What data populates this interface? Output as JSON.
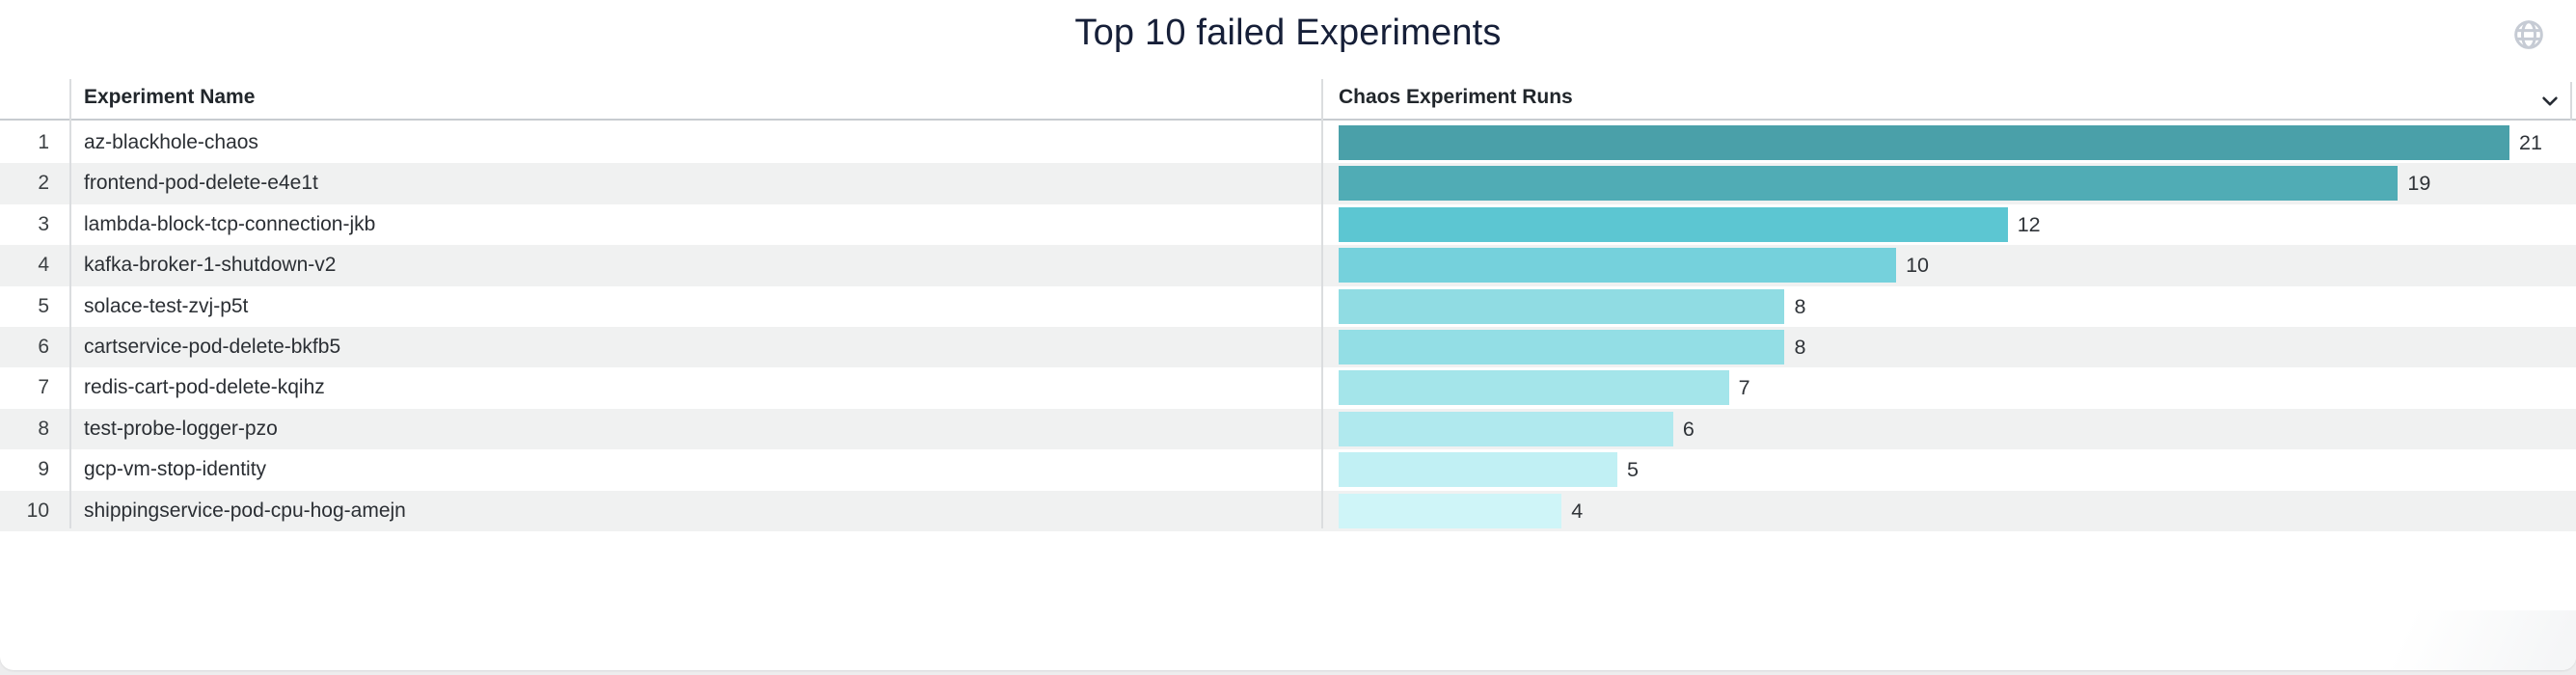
{
  "card": {
    "title": "Top 10 failed Experiments"
  },
  "icons": {
    "top_right": "globe-icon",
    "header_sort": "chevron-down-icon"
  },
  "table": {
    "columns": [
      {
        "label": ""
      },
      {
        "label": "Experiment Name"
      },
      {
        "label": "Chaos Experiment Runs"
      }
    ],
    "rows": [
      {
        "rank": 1,
        "name": "az-blackhole-chaos",
        "runs": 21,
        "color": "#4aa0a9"
      },
      {
        "rank": 2,
        "name": "frontend-pod-delete-e4e1t",
        "runs": 19,
        "color": "#50acb5"
      },
      {
        "rank": 3,
        "name": "lambda-block-tcp-connection-jkb",
        "runs": 12,
        "color": "#5cc6d2"
      },
      {
        "rank": 4,
        "name": "kafka-broker-1-shutdown-v2",
        "runs": 10,
        "color": "#75d1dc"
      },
      {
        "rank": 5,
        "name": "solace-test-zvj-p5t",
        "runs": 8,
        "color": "#90dce3"
      },
      {
        "rank": 6,
        "name": "cartservice-pod-delete-bkfb5",
        "runs": 8,
        "color": "#93dee5"
      },
      {
        "rank": 7,
        "name": "redis-cart-pod-delete-kqihz",
        "runs": 7,
        "color": "#a4e5ea"
      },
      {
        "rank": 8,
        "name": "test-probe-logger-pzo",
        "runs": 6,
        "color": "#b0e9ee"
      },
      {
        "rank": 9,
        "name": "gcp-vm-stop-identity",
        "runs": 5,
        "color": "#c1f0f4"
      },
      {
        "rank": 10,
        "name": "shippingservice-pod-cpu-hog-amejn",
        "runs": 4,
        "color": "#cff5f8"
      }
    ]
  },
  "chart_data": {
    "type": "bar",
    "orientation": "horizontal",
    "title": "Top 10 failed Experiments",
    "category_label": "Experiment Name",
    "value_label": "Chaos Experiment Runs",
    "categories": [
      "az-blackhole-chaos",
      "frontend-pod-delete-e4e1t",
      "lambda-block-tcp-connection-jkb",
      "kafka-broker-1-shutdown-v2",
      "solace-test-zvj-p5t",
      "cartservice-pod-delete-bkfb5",
      "redis-cart-pod-delete-kqihz",
      "test-probe-logger-pzo",
      "gcp-vm-stop-identity",
      "shippingservice-pod-cpu-hog-amejn"
    ],
    "values": [
      21,
      19,
      12,
      10,
      8,
      8,
      7,
      6,
      5,
      4
    ],
    "xlim": [
      0,
      21
    ],
    "data_labels": true,
    "grid": false,
    "legend": false,
    "bar_colors": [
      "#4aa0a9",
      "#50acb5",
      "#5cc6d2",
      "#75d1dc",
      "#90dce3",
      "#93dee5",
      "#a4e5ea",
      "#b0e9ee",
      "#c1f0f4",
      "#cff5f8"
    ],
    "row_stripe_color": "#f0f1f1"
  }
}
